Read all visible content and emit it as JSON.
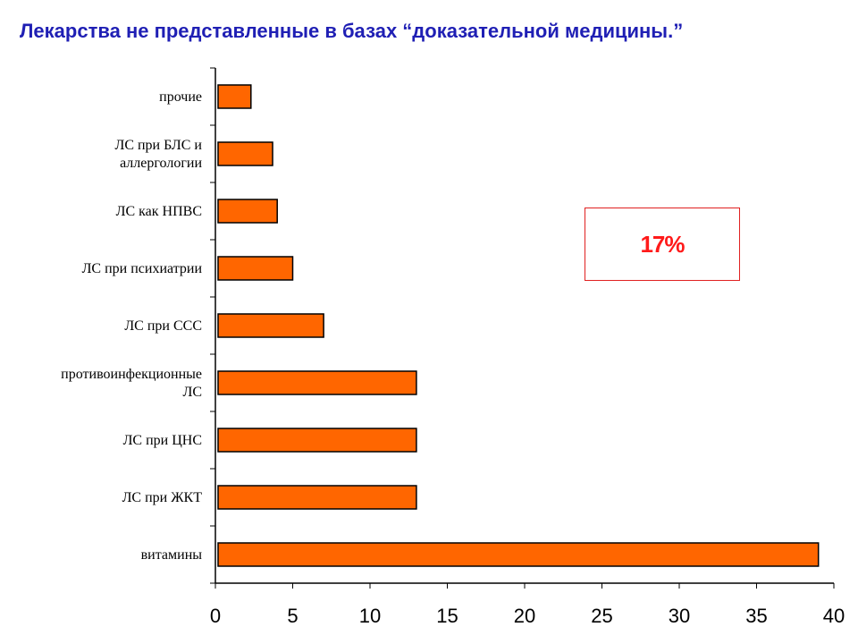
{
  "title": "Лекарства не представленные в базах “доказательной медицины.”",
  "callout": {
    "text": "17%",
    "border_color": "#e02020",
    "text_color": "#ff1a1a"
  },
  "chart_data": {
    "type": "bar",
    "orientation": "horizontal",
    "categories": [
      [
        "прочие"
      ],
      [
        "ЛС при БЛС и",
        "аллергологии"
      ],
      [
        "ЛС как НПВС"
      ],
      [
        "ЛС при психиатрии"
      ],
      [
        "ЛС при ССС"
      ],
      [
        "противоинфекционные",
        "ЛС"
      ],
      [
        "ЛС при ЦНС"
      ],
      [
        "ЛС при ЖКТ"
      ],
      [
        "витамины"
      ]
    ],
    "values": [
      2.3,
      3.7,
      4.0,
      5.0,
      7.0,
      13.0,
      13.0,
      13.0,
      39.0
    ],
    "xlim": [
      0,
      40
    ],
    "xticks": [
      "0",
      "5",
      "10",
      "15",
      "20",
      "25",
      "30",
      "35",
      "40"
    ],
    "bar_color": "#ff6600",
    "grid": false,
    "legend": "none"
  }
}
